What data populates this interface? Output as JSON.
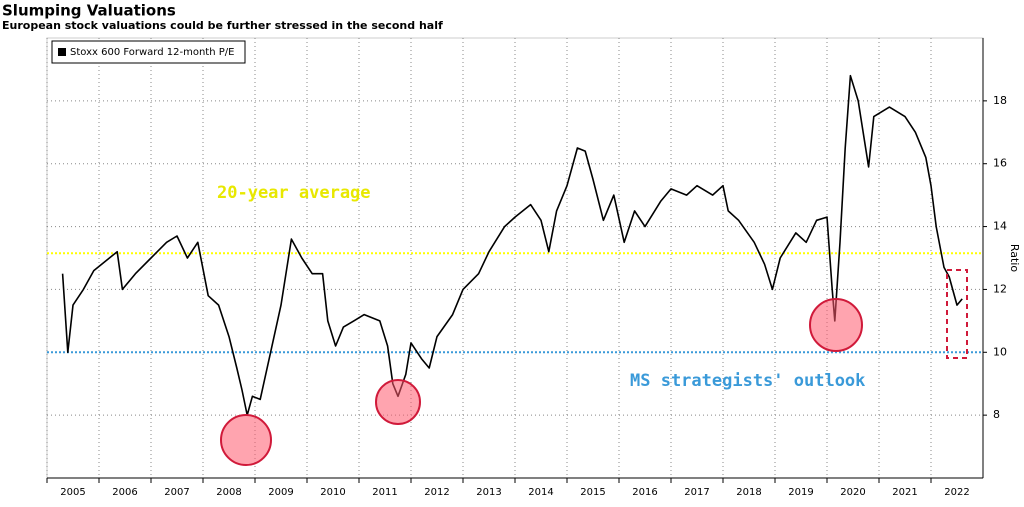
{
  "chart_data": {
    "type": "line",
    "title": "Slumping Valuations",
    "subtitle": "European stock valuations could be further stressed in the second half",
    "y_axis_label": "Ratio",
    "legend_position": "upper left",
    "grid": true,
    "xlim": [
      2005,
      2023
    ],
    "xticks": [
      2005,
      2006,
      2007,
      2008,
      2009,
      2010,
      2011,
      2012,
      2013,
      2014,
      2015,
      2016,
      2017,
      2018,
      2019,
      2020,
      2021,
      2022
    ],
    "ylim": [
      6,
      20
    ],
    "yticks": [
      8,
      10,
      12,
      14,
      16,
      18
    ],
    "reference_lines": [
      {
        "label": "20-year average",
        "value": 13.15,
        "color": "#ffff00"
      },
      {
        "label": "MS strategists' outlook",
        "value": 10,
        "color": "#3a9ad9"
      }
    ],
    "series": [
      {
        "name": "Stoxx 600 Forward 12-month P/E",
        "color": "#000000",
        "x": [
          2005.3,
          2005.4,
          2005.5,
          2005.7,
          2005.9,
          2006.2,
          2006.35,
          2006.45,
          2006.7,
          2007.0,
          2007.3,
          2007.5,
          2007.7,
          2007.9,
          2008.1,
          2008.3,
          2008.5,
          2008.65,
          2008.75,
          2008.85,
          2008.95,
          2009.1,
          2009.3,
          2009.5,
          2009.7,
          2009.9,
          2010.1,
          2010.3,
          2010.4,
          2010.55,
          2010.7,
          2010.9,
          2011.1,
          2011.4,
          2011.55,
          2011.65,
          2011.75,
          2011.9,
          2012.0,
          2012.2,
          2012.35,
          2012.5,
          2012.8,
          2013.0,
          2013.3,
          2013.5,
          2013.8,
          2014.0,
          2014.3,
          2014.5,
          2014.65,
          2014.8,
          2015.0,
          2015.2,
          2015.35,
          2015.5,
          2015.7,
          2015.9,
          2016.1,
          2016.3,
          2016.5,
          2016.8,
          2017.0,
          2017.3,
          2017.5,
          2017.8,
          2018.0,
          2018.1,
          2018.3,
          2018.6,
          2018.8,
          2018.95,
          2019.1,
          2019.4,
          2019.6,
          2019.8,
          2020.0,
          2020.1,
          2020.15,
          2020.25,
          2020.35,
          2020.45,
          2020.6,
          2020.8,
          2020.9,
          2021.2,
          2021.5,
          2021.7,
          2021.9,
          2022.0,
          2022.1,
          2022.25,
          2022.35,
          2022.5,
          2022.6
        ],
        "values": [
          12.5,
          10.0,
          11.5,
          12.0,
          12.6,
          13.0,
          13.2,
          12.0,
          12.5,
          13.0,
          13.5,
          13.7,
          13.0,
          13.5,
          11.8,
          11.5,
          10.5,
          9.5,
          8.8,
          8.0,
          8.6,
          8.5,
          10.0,
          11.5,
          13.6,
          13.0,
          12.5,
          12.5,
          11.0,
          10.2,
          10.8,
          11.0,
          11.2,
          11.0,
          10.2,
          9.0,
          8.6,
          9.3,
          10.3,
          9.8,
          9.5,
          10.5,
          11.2,
          12.0,
          12.5,
          13.2,
          14.0,
          14.3,
          14.7,
          14.2,
          13.2,
          14.5,
          15.3,
          16.5,
          16.4,
          15.5,
          14.2,
          15.0,
          13.5,
          14.5,
          14.0,
          14.8,
          15.2,
          15.0,
          15.3,
          15.0,
          15.3,
          14.5,
          14.2,
          13.5,
          12.8,
          12.0,
          13.0,
          13.8,
          13.5,
          14.2,
          14.3,
          12.0,
          11.0,
          13.5,
          16.5,
          18.8,
          18.0,
          15.9,
          17.5,
          17.8,
          17.5,
          17.0,
          16.2,
          15.3,
          14.0,
          12.7,
          12.4,
          11.5,
          11.7
        ]
      }
    ]
  }
}
